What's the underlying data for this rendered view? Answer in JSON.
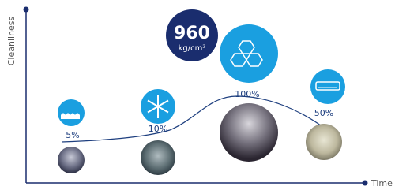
{
  "axes": {
    "y_label": "Cleanliness",
    "x_label": "Time"
  },
  "badge": {
    "value": "960",
    "unit": "kg/cm²"
  },
  "stages": [
    {
      "label": "5%"
    },
    {
      "label": "10%"
    },
    {
      "label": "100%"
    },
    {
      "label": "50%"
    }
  ]
}
